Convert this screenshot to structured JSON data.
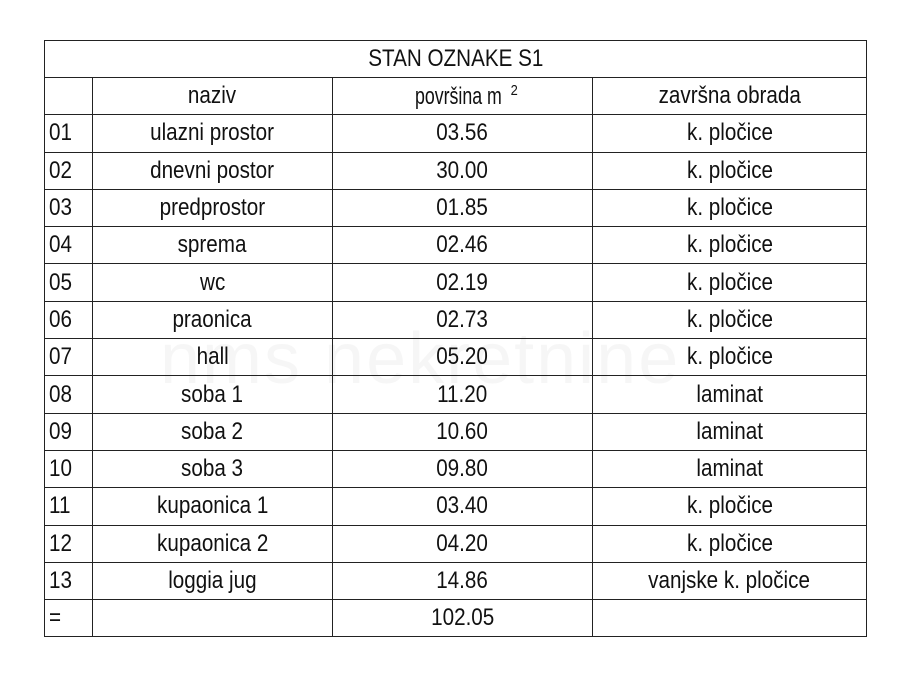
{
  "title": "STAN OZNAKE S1",
  "headers": {
    "num": "",
    "name": "naziv",
    "area": "površina  m",
    "area_sup": "2",
    "finish": "završna obrada"
  },
  "rows": [
    {
      "num": "01",
      "name": "ulazni prostor",
      "area": "03.56",
      "finish": "k. pločice"
    },
    {
      "num": "02",
      "name": "dnevni postor",
      "area": "30.00",
      "finish": "k. pločice"
    },
    {
      "num": "03",
      "name": "predprostor",
      "area": "01.85",
      "finish": "k. pločice"
    },
    {
      "num": "04",
      "name": "sprema",
      "area": "02.46",
      "finish": "k. pločice"
    },
    {
      "num": "05",
      "name": "wc",
      "area": "02.19",
      "finish": "k. pločice"
    },
    {
      "num": "06",
      "name": "praonica",
      "area": "02.73",
      "finish": "k. pločice"
    },
    {
      "num": "07",
      "name": "hall",
      "area": "05.20",
      "finish": "k. pločice"
    },
    {
      "num": "08",
      "name": "soba 1",
      "area": "11.20",
      "finish": "laminat"
    },
    {
      "num": "09",
      "name": "soba 2",
      "area": "10.60",
      "finish": "laminat"
    },
    {
      "num": "10",
      "name": "soba 3",
      "area": "09.80",
      "finish": "laminat"
    },
    {
      "num": "11",
      "name": "kupaonica 1",
      "area": "03.40",
      "finish": "k. pločice"
    },
    {
      "num": "12",
      "name": "kupaonica 2",
      "area": "04.20",
      "finish": "k. pločice"
    },
    {
      "num": "13",
      "name": "loggia jug",
      "area": "14.86",
      "finish": "vanjske k. pločice"
    }
  ],
  "total": {
    "num": "=",
    "area": "102.05"
  },
  "watermark": "nms nekretnine"
}
